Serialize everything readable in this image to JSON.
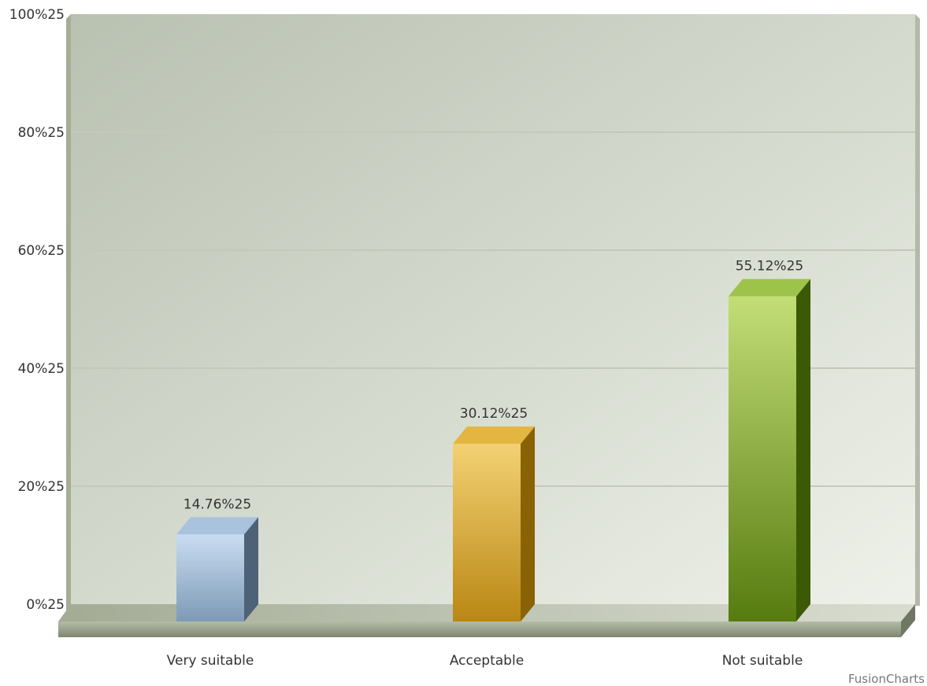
{
  "chart_data": {
    "type": "bar",
    "style": "3d-column",
    "categories": [
      "Very suitable",
      "Acceptable",
      "Not suitable"
    ],
    "values": [
      14.76,
      30.12,
      55.12
    ],
    "value_labels": [
      "14.76%25",
      "30.12%25",
      "55.12%25"
    ],
    "ylim": [
      0,
      100
    ],
    "y_ticks": [
      0,
      20,
      40,
      60,
      80,
      100
    ],
    "y_tick_labels": [
      "0%25",
      "20%25",
      "40%25",
      "60%25",
      "80%25",
      "100%25"
    ],
    "grid": true,
    "colors": [
      {
        "front_top": "#c9ddf2",
        "front_bottom": "#7e9ab6",
        "side": "#4e6277",
        "top": "#a9c3de"
      },
      {
        "front_top": "#f3d173",
        "front_bottom": "#b98714",
        "side": "#8a6206",
        "top": "#e3b641"
      },
      {
        "front_top": "#c3de77",
        "front_bottom": "#567b0f",
        "side": "#3c5a05",
        "top": "#9dc34a"
      }
    ],
    "canvas_colors": {
      "top_left": "#b9c1b1",
      "bottom_right": "#eef1e9",
      "grid": "#c4c9b8",
      "floor": "#a9b29a"
    }
  },
  "credit": "FusionCharts"
}
